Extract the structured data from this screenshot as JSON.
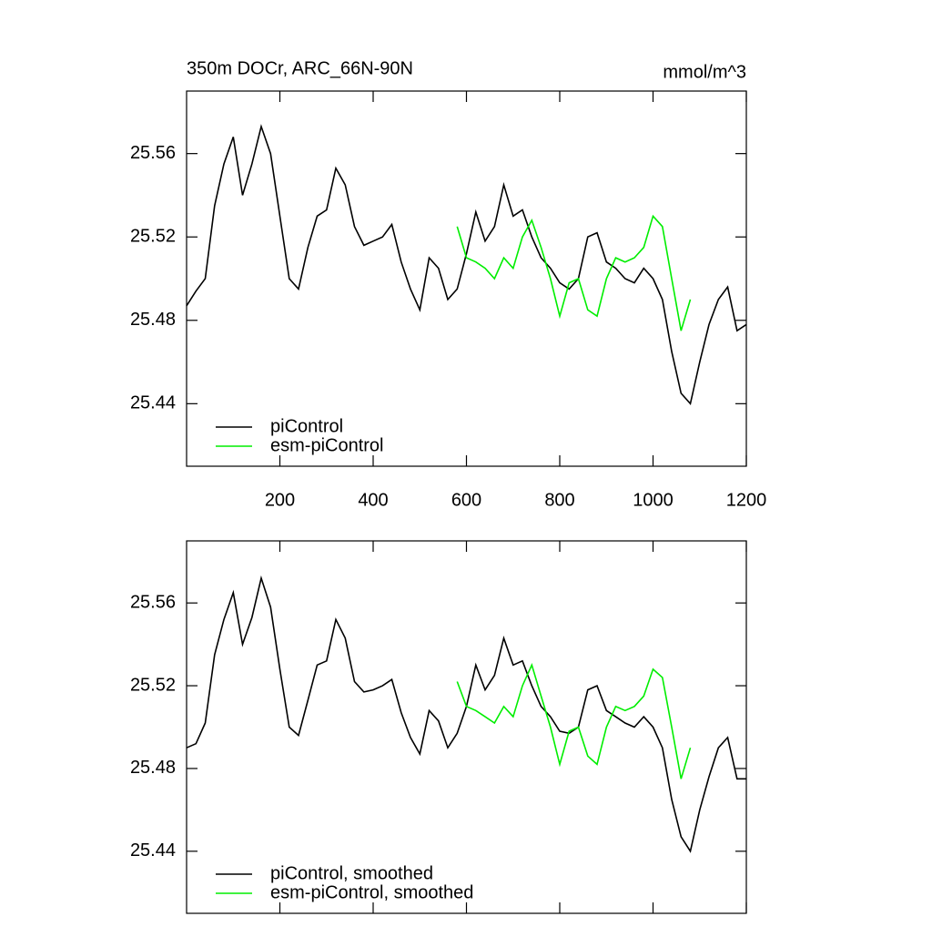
{
  "chart_data": [
    {
      "type": "line",
      "title": "350m DOCr, ARC_66N-90N",
      "subtitle": "mmol/m^3",
      "xlim": [
        0,
        1200
      ],
      "xticks": [
        200,
        400,
        600,
        800,
        1000,
        1200
      ],
      "xticklabels": true,
      "ylim": [
        25.41,
        25.59
      ],
      "yticks": [
        25.44,
        25.48,
        25.52,
        25.56
      ],
      "legend": "lower left",
      "series": [
        {
          "name": "piControl",
          "color": "#000000",
          "x": [
            0,
            20,
            40,
            60,
            80,
            100,
            120,
            140,
            160,
            180,
            200,
            220,
            240,
            260,
            280,
            300,
            320,
            340,
            360,
            380,
            400,
            420,
            440,
            460,
            480,
            500,
            520,
            540,
            560,
            580,
            600,
            620,
            640,
            660,
            680,
            700,
            720,
            740,
            760,
            780,
            800,
            820,
            840,
            860,
            880,
            900,
            920,
            940,
            960,
            980,
            1000,
            1020,
            1040,
            1060,
            1080,
            1100,
            1120,
            1140,
            1160,
            1180,
            1200
          ],
          "values": [
            25.487,
            25.494,
            25.5,
            25.535,
            25.555,
            25.568,
            25.54,
            25.555,
            25.573,
            25.56,
            25.53,
            25.5,
            25.495,
            25.515,
            25.53,
            25.533,
            25.553,
            25.545,
            25.525,
            25.516,
            25.518,
            25.52,
            25.526,
            25.508,
            25.495,
            25.485,
            25.51,
            25.505,
            25.49,
            25.495,
            25.512,
            25.532,
            25.518,
            25.525,
            25.545,
            25.53,
            25.533,
            25.52,
            25.51,
            25.505,
            25.498,
            25.495,
            25.5,
            25.52,
            25.522,
            25.508,
            25.505,
            25.5,
            25.498,
            25.505,
            25.5,
            25.49,
            25.465,
            25.445,
            25.44,
            25.46,
            25.478,
            25.49,
            25.496,
            25.475,
            25.478
          ]
        },
        {
          "name": "esm-piControl",
          "color": "#00ee00",
          "x": [
            580,
            600,
            620,
            640,
            660,
            680,
            700,
            720,
            740,
            760,
            780,
            800,
            820,
            840,
            860,
            880,
            900,
            920,
            940,
            960,
            980,
            1000,
            1020,
            1040,
            1060,
            1080
          ],
          "values": [
            25.525,
            25.51,
            25.508,
            25.505,
            25.5,
            25.51,
            25.505,
            25.52,
            25.528,
            25.515,
            25.5,
            25.482,
            25.498,
            25.5,
            25.485,
            25.482,
            25.5,
            25.51,
            25.508,
            25.51,
            25.515,
            25.53,
            25.525,
            25.5,
            25.475,
            25.49
          ]
        }
      ]
    },
    {
      "type": "line",
      "xlim": [
        0,
        1200
      ],
      "xticks": [
        200,
        400,
        600,
        800,
        1000,
        1200
      ],
      "xticklabels": false,
      "ylim": [
        25.41,
        25.59
      ],
      "yticks": [
        25.44,
        25.48,
        25.52,
        25.56
      ],
      "legend": "lower left",
      "series": [
        {
          "name": "piControl, smoothed",
          "color": "#000000",
          "x": [
            0,
            20,
            40,
            60,
            80,
            100,
            120,
            140,
            160,
            180,
            200,
            220,
            240,
            260,
            280,
            300,
            320,
            340,
            360,
            380,
            400,
            420,
            440,
            460,
            480,
            500,
            520,
            540,
            560,
            580,
            600,
            620,
            640,
            660,
            680,
            700,
            720,
            740,
            760,
            780,
            800,
            820,
            840,
            860,
            880,
            900,
            920,
            940,
            960,
            980,
            1000,
            1020,
            1040,
            1060,
            1080,
            1100,
            1120,
            1140,
            1160,
            1180,
            1200
          ],
          "values": [
            25.49,
            25.492,
            25.502,
            25.535,
            25.552,
            25.565,
            25.54,
            25.553,
            25.572,
            25.558,
            25.528,
            25.5,
            25.496,
            25.513,
            25.53,
            25.532,
            25.552,
            25.543,
            25.522,
            25.517,
            25.518,
            25.52,
            25.523,
            25.507,
            25.495,
            25.487,
            25.508,
            25.503,
            25.49,
            25.497,
            25.51,
            25.53,
            25.518,
            25.525,
            25.543,
            25.53,
            25.532,
            25.52,
            25.51,
            25.505,
            25.498,
            25.497,
            25.5,
            25.518,
            25.52,
            25.508,
            25.505,
            25.502,
            25.5,
            25.505,
            25.5,
            25.49,
            25.465,
            25.447,
            25.44,
            25.46,
            25.476,
            25.49,
            25.495,
            25.475,
            25.475
          ]
        },
        {
          "name": "esm-piControl, smoothed",
          "color": "#00ee00",
          "x": [
            580,
            600,
            620,
            640,
            660,
            680,
            700,
            720,
            740,
            760,
            780,
            800,
            820,
            840,
            860,
            880,
            900,
            920,
            940,
            960,
            980,
            1000,
            1020,
            1040,
            1060,
            1080
          ],
          "values": [
            25.522,
            25.51,
            25.508,
            25.505,
            25.502,
            25.51,
            25.505,
            25.52,
            25.53,
            25.515,
            25.5,
            25.482,
            25.498,
            25.5,
            25.486,
            25.482,
            25.5,
            25.51,
            25.508,
            25.51,
            25.515,
            25.528,
            25.524,
            25.5,
            25.475,
            25.49
          ]
        }
      ]
    }
  ]
}
